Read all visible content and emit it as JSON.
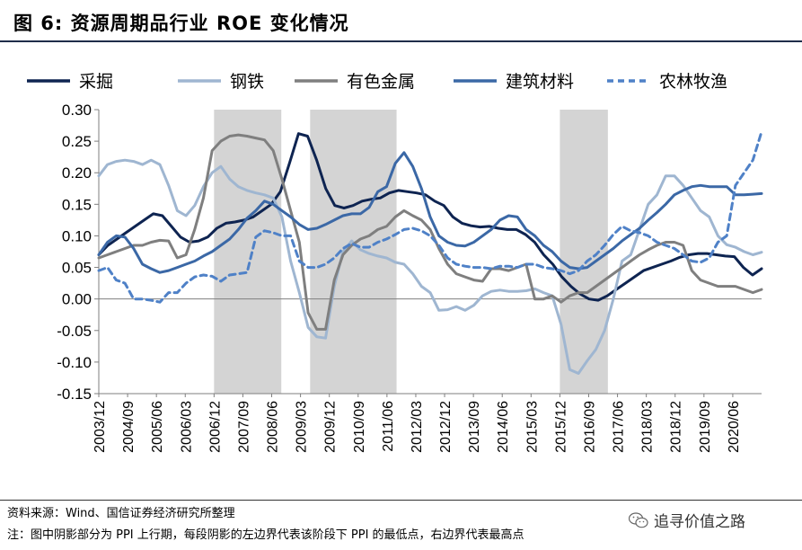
{
  "header": {
    "title": "图 6:  资源周期品行业 ROE 变化情况"
  },
  "footer": {
    "source": "资料来源：Wind、国信证券经济研究所整理",
    "note": "注：图中阴影部分为 PPI 上行期，每段阴影的左边界代表该阶段下 PPI 的最低点，右边界代表最高点",
    "watermark": "追寻价值之路"
  },
  "chart_data": {
    "type": "line",
    "title": "",
    "xlabel": "",
    "ylabel": "",
    "ylim": [
      -0.15,
      0.3
    ],
    "yticks": [
      -0.15,
      -0.1,
      -0.05,
      0.0,
      0.05,
      0.1,
      0.15,
      0.2,
      0.25,
      0.3
    ],
    "ytick_labels": [
      "-0.15",
      "-0.10",
      "-0.05",
      "0.00",
      "0.05",
      "0.10",
      "0.15",
      "0.20",
      "0.25",
      "0.30"
    ],
    "grid": false,
    "legend_position": "top",
    "x_start": "2003/12",
    "x_end": "2021/03",
    "xtick_labels": [
      "2003/12",
      "2004/09",
      "2005/06",
      "2006/03",
      "2006/12",
      "2007/09",
      "2008/06",
      "2009/03",
      "2009/12",
      "2010/09",
      "2011/06",
      "2012/03",
      "2012/12",
      "2013/09",
      "2014/06",
      "2015/03",
      "2015/12",
      "2016/09",
      "2017/06",
      "2018/03",
      "2018/12",
      "2019/09",
      "2020/06"
    ],
    "shaded_periods": [
      {
        "start": "2006/12",
        "end": "2008/09"
      },
      {
        "start": "2009/06",
        "end": "2011/09"
      },
      {
        "start": "2015/12",
        "end": "2017/03"
      }
    ],
    "shade_color": "#d4d4d4",
    "series": [
      {
        "name": "采掘",
        "color": "#0e2451",
        "dash": false,
        "width": 3,
        "values": [
          0.07,
          0.085,
          0.095,
          0.105,
          0.115,
          0.125,
          0.135,
          0.132,
          0.115,
          0.098,
          0.09,
          0.092,
          0.098,
          0.112,
          0.12,
          0.122,
          0.125,
          0.13,
          0.14,
          0.15,
          0.17,
          0.215,
          0.262,
          0.258,
          0.22,
          0.175,
          0.148,
          0.144,
          0.148,
          0.155,
          0.158,
          0.16,
          0.168,
          0.172,
          0.17,
          0.168,
          0.165,
          0.155,
          0.148,
          0.13,
          0.12,
          0.116,
          0.114,
          0.115,
          0.112,
          0.11,
          0.11,
          0.102,
          0.09,
          0.07,
          0.055,
          0.035,
          0.02,
          0.008,
          0.0,
          -0.002,
          0.005,
          0.015,
          0.025,
          0.035,
          0.045,
          0.05,
          0.055,
          0.06,
          0.066,
          0.07,
          0.072,
          0.072,
          0.07,
          0.068,
          0.067,
          0.05,
          0.038,
          0.048
        ]
      },
      {
        "name": "钢铁",
        "color": "#9fb6d1",
        "dash": false,
        "width": 3,
        "values": [
          0.195,
          0.213,
          0.218,
          0.22,
          0.218,
          0.213,
          0.22,
          0.213,
          0.18,
          0.14,
          0.132,
          0.148,
          0.178,
          0.2,
          0.21,
          0.19,
          0.178,
          0.172,
          0.168,
          0.165,
          0.16,
          0.13,
          0.06,
          0.01,
          -0.045,
          -0.06,
          -0.062,
          0.02,
          0.075,
          0.092,
          0.078,
          0.072,
          0.068,
          0.065,
          0.058,
          0.055,
          0.04,
          0.02,
          0.01,
          -0.018,
          -0.017,
          -0.012,
          -0.018,
          -0.01,
          0.005,
          0.012,
          0.014,
          0.012,
          0.012,
          0.013,
          0.016,
          0.01,
          0.005,
          -0.04,
          -0.112,
          -0.118,
          -0.098,
          -0.08,
          -0.05,
          0.0,
          0.06,
          0.07,
          0.11,
          0.15,
          0.165,
          0.195,
          0.195,
          0.18,
          0.16,
          0.14,
          0.13,
          0.1,
          0.086,
          0.082,
          0.075,
          0.07,
          0.074
        ]
      },
      {
        "name": "有色金属",
        "color": "#7f7f7f",
        "dash": false,
        "width": 3,
        "values": [
          0.065,
          0.07,
          0.075,
          0.08,
          0.085,
          0.085,
          0.09,
          0.093,
          0.092,
          0.065,
          0.07,
          0.11,
          0.16,
          0.235,
          0.25,
          0.258,
          0.26,
          0.258,
          0.255,
          0.252,
          0.235,
          0.19,
          0.14,
          0.09,
          -0.022,
          -0.048,
          -0.048,
          0.03,
          0.07,
          0.085,
          0.095,
          0.1,
          0.11,
          0.115,
          0.13,
          0.14,
          0.132,
          0.125,
          0.11,
          0.08,
          0.055,
          0.04,
          0.035,
          0.03,
          0.028,
          0.048,
          0.048,
          0.045,
          0.05,
          0.055,
          0.0,
          0.0,
          0.005,
          -0.005,
          0.005,
          0.01,
          0.01,
          0.02,
          0.03,
          0.04,
          0.05,
          0.06,
          0.07,
          0.078,
          0.085,
          0.09,
          0.09,
          0.085,
          0.045,
          0.03,
          0.025,
          0.02,
          0.02,
          0.02,
          0.015,
          0.01,
          0.015
        ]
      },
      {
        "name": "建筑材料",
        "color": "#3b68a6",
        "dash": false,
        "width": 3,
        "values": [
          0.07,
          0.09,
          0.1,
          0.098,
          0.08,
          0.055,
          0.048,
          0.042,
          0.045,
          0.05,
          0.055,
          0.06,
          0.068,
          0.075,
          0.085,
          0.095,
          0.11,
          0.128,
          0.14,
          0.155,
          0.15,
          0.14,
          0.13,
          0.118,
          0.11,
          0.112,
          0.118,
          0.125,
          0.132,
          0.135,
          0.135,
          0.145,
          0.17,
          0.178,
          0.215,
          0.232,
          0.21,
          0.175,
          0.13,
          0.1,
          0.09,
          0.085,
          0.084,
          0.09,
          0.1,
          0.11,
          0.125,
          0.132,
          0.13,
          0.11,
          0.1,
          0.085,
          0.075,
          0.06,
          0.05,
          0.048,
          0.05,
          0.06,
          0.07,
          0.08,
          0.092,
          0.102,
          0.112,
          0.125,
          0.137,
          0.15,
          0.165,
          0.172,
          0.178,
          0.18,
          0.178,
          0.178,
          0.178,
          0.165,
          0.165,
          0.166,
          0.167
        ]
      },
      {
        "name": "农林牧渔",
        "color": "#4f81c7",
        "dash": true,
        "width": 3,
        "values": [
          0.045,
          0.05,
          0.03,
          0.025,
          0.0,
          0.0,
          -0.002,
          -0.005,
          0.01,
          0.01,
          0.025,
          0.035,
          0.038,
          0.036,
          0.028,
          0.038,
          0.04,
          0.042,
          0.098,
          0.108,
          0.105,
          0.1,
          0.1,
          0.06,
          0.05,
          0.05,
          0.055,
          0.065,
          0.08,
          0.088,
          0.082,
          0.082,
          0.09,
          0.095,
          0.102,
          0.11,
          0.112,
          0.108,
          0.1,
          0.085,
          0.065,
          0.055,
          0.052,
          0.05,
          0.05,
          0.048,
          0.052,
          0.052,
          0.05,
          0.055,
          0.055,
          0.05,
          0.048,
          0.045,
          0.04,
          0.045,
          0.06,
          0.07,
          0.085,
          0.102,
          0.115,
          0.108,
          0.105,
          0.1,
          0.09,
          0.085,
          0.08,
          0.07,
          0.06,
          0.058,
          0.065,
          0.09,
          0.1,
          0.18,
          0.2,
          0.22,
          0.265
        ]
      }
    ]
  }
}
